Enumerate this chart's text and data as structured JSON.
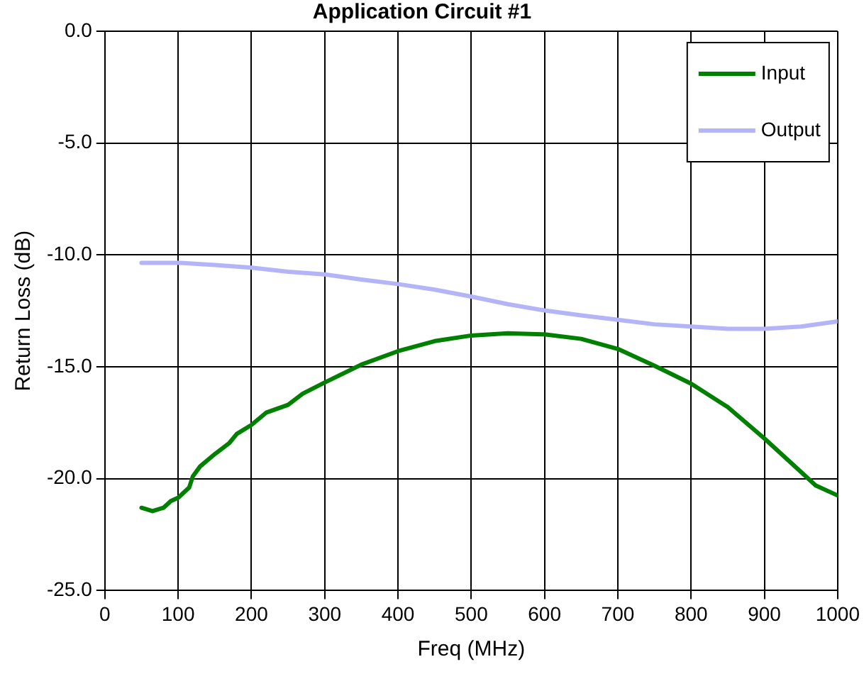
{
  "chart_data": {
    "type": "line",
    "title": "Application Circuit #1",
    "xlabel": "Freq (MHz)",
    "ylabel": "Return Loss (dB)",
    "xlim": [
      0,
      1000
    ],
    "ylim": [
      -25,
      0
    ],
    "xticks": [
      0,
      100,
      200,
      300,
      400,
      500,
      600,
      700,
      800,
      900,
      1000
    ],
    "yticks": [
      {
        "value": -25,
        "label": "-25.0"
      },
      {
        "value": -20,
        "label": "-20.0"
      },
      {
        "value": -15,
        "label": "-15.0"
      },
      {
        "value": -10,
        "label": "-10.0"
      },
      {
        "value": -5,
        "label": "-5.0"
      },
      {
        "value": 0,
        "label": "0.0"
      }
    ],
    "grid": true,
    "legend": "top right",
    "marker": "none",
    "line_style": "solid",
    "series": [
      {
        "name": "Input",
        "color": "#008000",
        "x": [
          50,
          65,
          80,
          90,
          100,
          115,
          120,
          130,
          150,
          170,
          180,
          200,
          220,
          250,
          270,
          300,
          350,
          400,
          450,
          500,
          550,
          600,
          650,
          700,
          750,
          800,
          850,
          900,
          950,
          970,
          1000
        ],
        "values": [
          -21.3,
          -21.45,
          -21.3,
          -21.0,
          -20.85,
          -20.4,
          -19.9,
          -19.45,
          -18.9,
          -18.4,
          -18.0,
          -17.6,
          -17.05,
          -16.7,
          -16.2,
          -15.7,
          -14.9,
          -14.3,
          -13.85,
          -13.6,
          -13.5,
          -13.55,
          -13.75,
          -14.2,
          -14.95,
          -15.75,
          -16.8,
          -18.2,
          -19.7,
          -20.3,
          -20.75
        ]
      },
      {
        "name": "Output",
        "color": "#b4b4f8",
        "x": [
          50,
          100,
          150,
          200,
          250,
          300,
          350,
          400,
          450,
          500,
          550,
          600,
          650,
          700,
          750,
          800,
          850,
          900,
          950,
          1000
        ],
        "values": [
          -10.35,
          -10.35,
          -10.45,
          -10.57,
          -10.75,
          -10.87,
          -11.1,
          -11.3,
          -11.55,
          -11.86,
          -12.2,
          -12.48,
          -12.7,
          -12.9,
          -13.1,
          -13.2,
          -13.3,
          -13.3,
          -13.2,
          -12.97
        ]
      }
    ]
  }
}
